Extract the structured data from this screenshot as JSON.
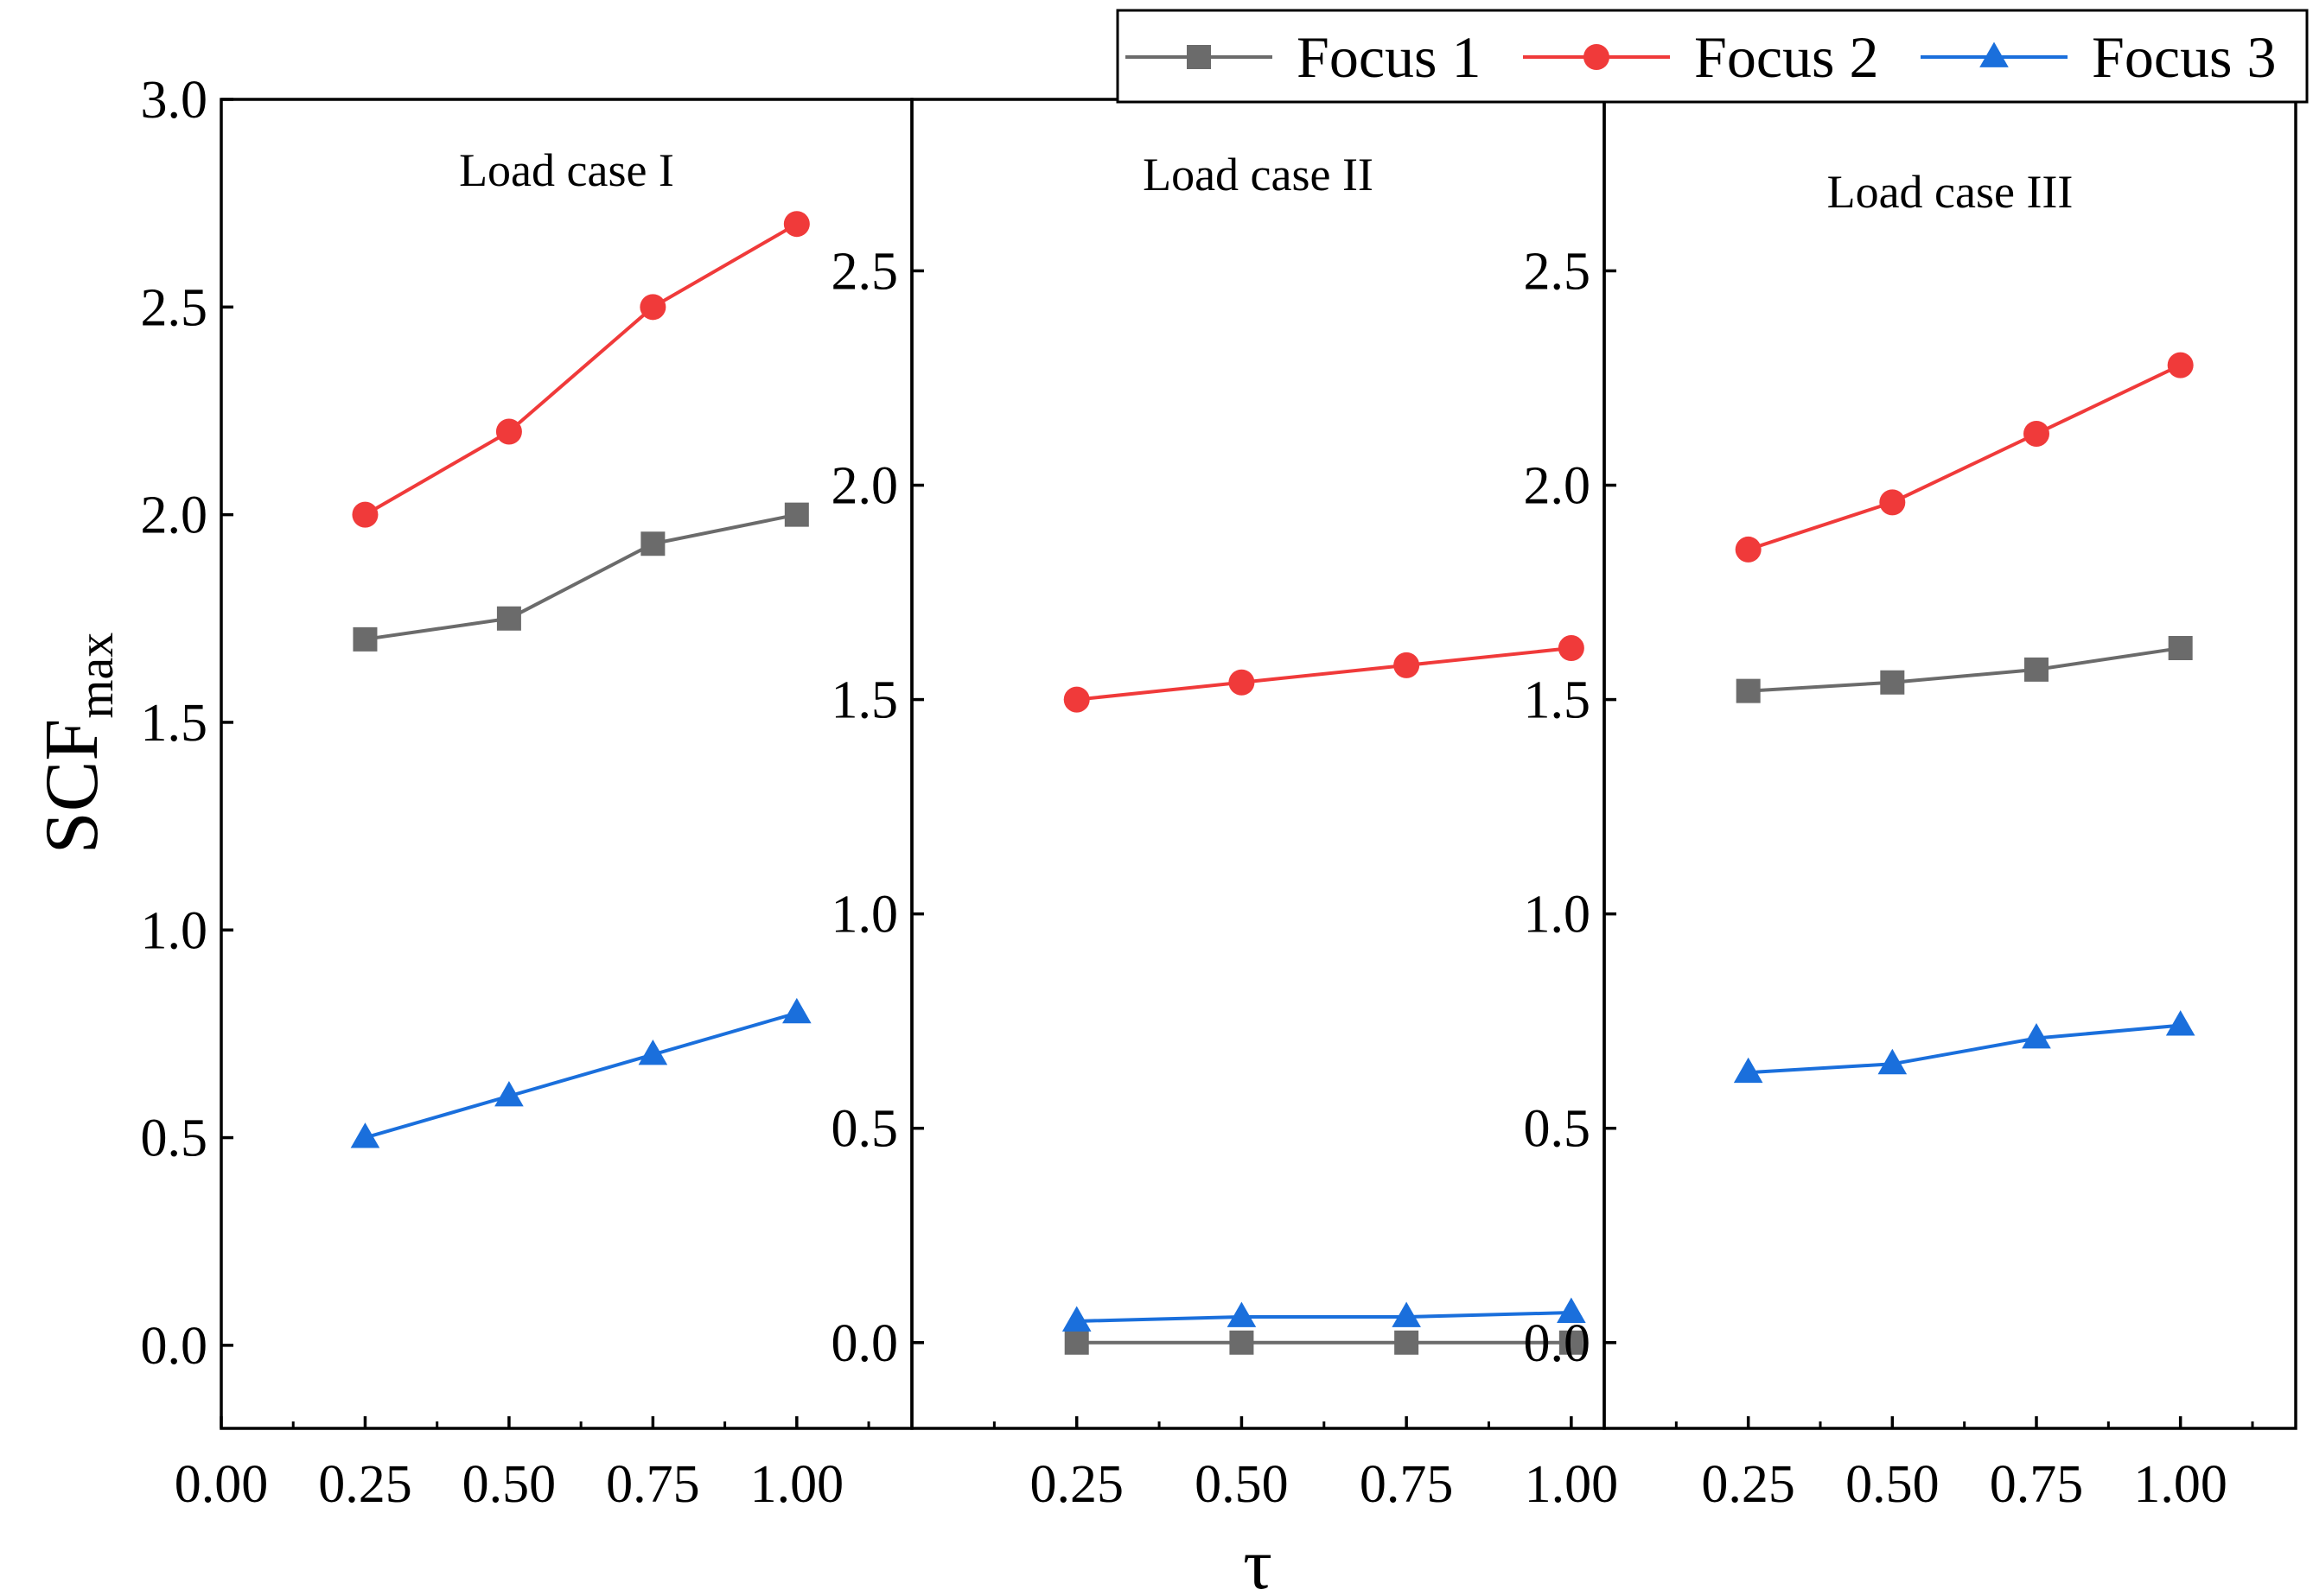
{
  "chart_data": {
    "type": "line",
    "ylabel": {
      "main": "SCF",
      "sub": "max"
    },
    "xlabel": "τ",
    "colors": {
      "Focus 1": "#6b6b6b",
      "Focus 2": "#f03a3a",
      "Focus 3": "#1a6fdc"
    },
    "markers": {
      "Focus 1": "square",
      "Focus 2": "circle",
      "Focus 3": "triangle"
    },
    "legend": {
      "placement": "top-right",
      "entries": [
        "Focus 1",
        "Focus 2",
        "Focus 3"
      ]
    },
    "panels": [
      {
        "title": "Load case I",
        "ylim": [
          -0.2,
          3.0
        ],
        "yticks": [
          "0.0",
          "0.5",
          "1.0",
          "1.5",
          "2.0",
          "2.5",
          "3.0"
        ],
        "xlim": [
          0.0,
          1.2
        ],
        "xticks": [
          "0.00",
          "0.25",
          "0.50",
          "0.75",
          "1.00"
        ],
        "x": [
          0.25,
          0.5,
          0.75,
          1.0
        ],
        "series": [
          {
            "name": "Focus 1",
            "values": [
              1.7,
              1.75,
              1.93,
              2.0
            ]
          },
          {
            "name": "Focus 2",
            "values": [
              2.0,
              2.2,
              2.5,
              2.7
            ]
          },
          {
            "name": "Focus 3",
            "values": [
              0.5,
              0.6,
              0.7,
              0.8
            ]
          }
        ]
      },
      {
        "title": "Load case II",
        "ylim": [
          -0.2,
          2.9
        ],
        "yticks": [
          "0.0",
          "0.5",
          "1.0",
          "1.5",
          "2.0",
          "2.5"
        ],
        "xlim": [
          0.0,
          1.05
        ],
        "xticks": [
          "0.25",
          "0.50",
          "0.75",
          "1.00"
        ],
        "x": [
          0.25,
          0.5,
          0.75,
          1.0
        ],
        "series": [
          {
            "name": "Focus 1",
            "values": [
              0.0,
              0.0,
              0.0,
              0.0
            ]
          },
          {
            "name": "Focus 2",
            "values": [
              1.5,
              1.54,
              1.58,
              1.62
            ]
          },
          {
            "name": "Focus 3",
            "values": [
              0.05,
              0.06,
              0.06,
              0.07
            ]
          }
        ]
      },
      {
        "title": "Load case III",
        "ylim": [
          -0.2,
          2.9
        ],
        "yticks": [
          "0.0",
          "0.5",
          "1.0",
          "1.5",
          "2.0",
          "2.5"
        ],
        "xlim": [
          0.0,
          1.2
        ],
        "xticks": [
          "0.25",
          "0.50",
          "0.75",
          "1.00"
        ],
        "x": [
          0.25,
          0.5,
          0.75,
          1.0
        ],
        "series": [
          {
            "name": "Focus 1",
            "values": [
              1.52,
              1.54,
              1.57,
              1.62
            ]
          },
          {
            "name": "Focus 2",
            "values": [
              1.85,
              1.96,
              2.12,
              2.28
            ]
          },
          {
            "name": "Focus 3",
            "values": [
              0.63,
              0.65,
              0.71,
              0.74
            ]
          }
        ]
      }
    ]
  }
}
